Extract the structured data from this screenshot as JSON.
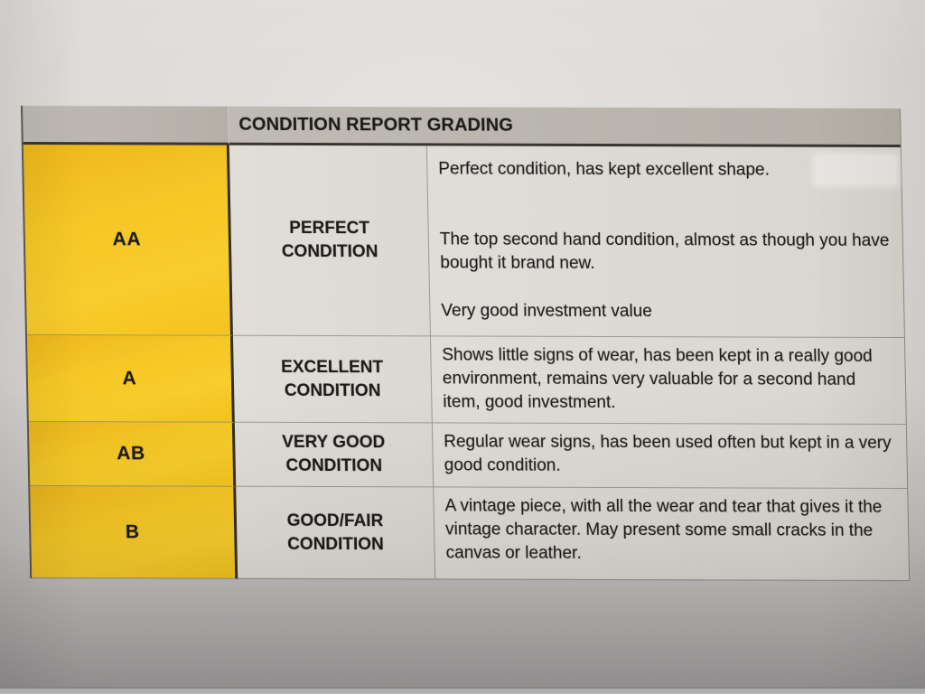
{
  "doc": {
    "header_title": "CONDITION REPORT GRADING",
    "rows": [
      {
        "code": "AA",
        "grade": "PERFECT CONDITION",
        "paragraphs": [
          "Perfect condition, has kept excellent shape.",
          "The top second hand condition, almost as though you have bought it brand new.",
          "Very good investment value"
        ]
      },
      {
        "code": "A",
        "grade": "EXCELLENT CONDITION",
        "paragraphs": [
          "Shows little signs of wear, has been kept in a really good environment, remains very valuable for a second hand item, good investment."
        ]
      },
      {
        "code": "AB",
        "grade": "VERY GOOD CONDITION",
        "paragraphs": [
          "Regular wear signs, has been used often but kept in a very good condition."
        ]
      },
      {
        "code": "B",
        "grade": "GOOD/FAIR CONDITION",
        "paragraphs": [
          "A vintage piece, with all the wear and tear that gives it the vintage character. May present some small cracks in the canvas or leather."
        ]
      }
    ],
    "colors": {
      "grade_column_yellow": "#f6c826",
      "header_band_gray": "#b9b5ae",
      "cell_background": "#dedbd6",
      "paper": "#d7d4d1",
      "text": "#1d1c1a"
    }
  }
}
